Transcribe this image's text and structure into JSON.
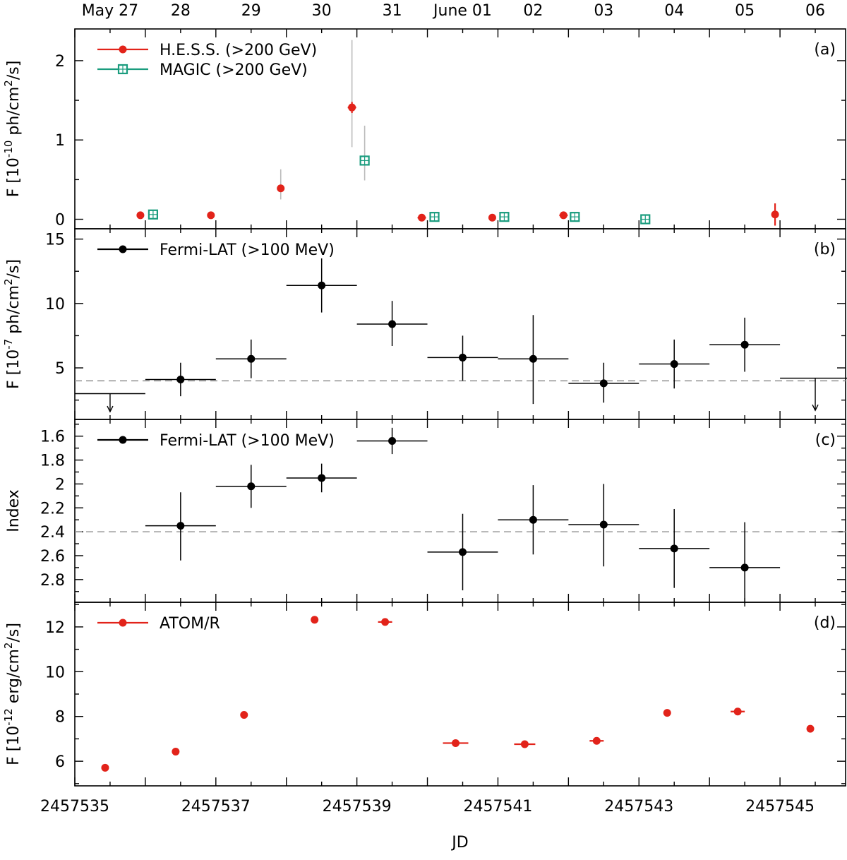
{
  "chart_data": {
    "type": "multi-panel scatter (light curves)",
    "xlabel": "JD",
    "xlim": [
      2457535.0,
      2457545.93
    ],
    "x_ticks": [
      2457535,
      2457537,
      2457539,
      2457541,
      2457543,
      2457545
    ],
    "x_ticks_labels": [
      "2457535",
      "2457537",
      "2457539",
      "2457541",
      "2457543",
      "2457545"
    ],
    "top_axis": {
      "ticks": [
        2457535.5,
        2457536.5,
        2457537.5,
        2457538.5,
        2457539.5,
        2457540.5,
        2457541.5,
        2457542.5,
        2457543.5,
        2457544.5,
        2457545.5
      ],
      "labels": [
        "May 27",
        "28",
        "29",
        "30",
        "31",
        "June 01",
        "02",
        "03",
        "04",
        "05",
        "06"
      ]
    },
    "colors": {
      "hess": "#e2231a",
      "magic": "#1a9c7e",
      "fermi": "#000000",
      "atom": "#e2231a",
      "reference_line": "#999999",
      "sys_error": "#bbbbbb"
    },
    "panels": [
      {
        "id": "a",
        "tag": "(a)",
        "ylabel": "F [10",
        "ylabel_exp": "-10",
        "ylabel_rest": " ph/cm",
        "ylabel_exp2": "2",
        "ylabel_end": "/s]",
        "ylim": [
          -0.12,
          2.4
        ],
        "yticks": [
          0,
          1,
          2
        ],
        "yticks_labels": [
          "0",
          "1",
          "2"
        ],
        "series": [
          {
            "name": "H.E.S.S. (>200 GeV)",
            "marker": "circle",
            "color": "#e2231a",
            "points": [
              {
                "x": 2457535.93,
                "y": 0.05,
                "xerr": 0.02,
                "yerr": 0.04
              },
              {
                "x": 2457536.93,
                "y": 0.05,
                "xerr": 0.02,
                "yerr": 0.02
              },
              {
                "x": 2457537.92,
                "y": 0.39,
                "xerr": 0.02,
                "yerr": 0.04,
                "syserr": [
                  0.25,
                  0.63
                ]
              },
              {
                "x": 2457538.93,
                "y": 1.41,
                "xerr": 0.06,
                "yerr": 0.07,
                "syserr": [
                  0.91,
                  2.26
                ]
              },
              {
                "x": 2457539.92,
                "y": 0.02,
                "xerr": 0.06,
                "yerr": 0.02
              },
              {
                "x": 2457540.92,
                "y": 0.02,
                "xerr": 0.04,
                "yerr": 0.02
              },
              {
                "x": 2457541.93,
                "y": 0.05,
                "xerr": 0.06,
                "yerr": 0.02
              },
              {
                "x": 2457544.93,
                "y": 0.06,
                "xerr": 0.02,
                "yerr": 0.14
              }
            ]
          },
          {
            "name": "MAGIC (>200 GeV)",
            "marker": "square-open",
            "color": "#1a9c7e",
            "points": [
              {
                "x": 2457536.11,
                "y": 0.06
              },
              {
                "x": 2457539.11,
                "y": 0.74,
                "syserr": [
                  0.49,
                  1.18
                ]
              },
              {
                "x": 2457540.1,
                "y": 0.03
              },
              {
                "x": 2457541.09,
                "y": 0.03
              },
              {
                "x": 2457542.09,
                "y": 0.03
              },
              {
                "x": 2457543.09,
                "y": 0.0
              }
            ]
          }
        ]
      },
      {
        "id": "b",
        "tag": "(b)",
        "ylabel": "F [10",
        "ylabel_exp": "-7",
        "ylabel_rest": " ph/cm",
        "ylabel_exp2": "2",
        "ylabel_end": "/s]",
        "ylim": [
          1.0,
          15.8
        ],
        "yticks": [
          5,
          10,
          15
        ],
        "yticks_labels": [
          "5",
          "10",
          "15"
        ],
        "reference_line": 4.0,
        "series": [
          {
            "name": "Fermi-LAT (>100 MeV)",
            "marker": "circle",
            "color": "#000000",
            "points": [
              {
                "x": 2457536.5,
                "y": 4.1,
                "xerr": 0.5,
                "yerr_lo": 1.3,
                "yerr_hi": 1.3
              },
              {
                "x": 2457537.5,
                "y": 5.7,
                "xerr": 0.5,
                "yerr_lo": 1.5,
                "yerr_hi": 1.5
              },
              {
                "x": 2457538.5,
                "y": 11.4,
                "xerr": 0.5,
                "yerr_lo": 2.1,
                "yerr_hi": 2.1
              },
              {
                "x": 2457539.5,
                "y": 8.4,
                "xerr": 0.5,
                "yerr_lo": 1.7,
                "yerr_hi": 1.8
              },
              {
                "x": 2457540.5,
                "y": 5.8,
                "xerr": 0.5,
                "yerr_lo": 1.8,
                "yerr_hi": 1.7
              },
              {
                "x": 2457541.5,
                "y": 5.7,
                "xerr": 0.5,
                "yerr_lo": 3.5,
                "yerr_hi": 3.4
              },
              {
                "x": 2457542.5,
                "y": 3.8,
                "xerr": 0.5,
                "yerr_lo": 1.5,
                "yerr_hi": 1.6
              },
              {
                "x": 2457543.5,
                "y": 5.3,
                "xerr": 0.5,
                "yerr_lo": 1.9,
                "yerr_hi": 1.9
              },
              {
                "x": 2457544.5,
                "y": 6.8,
                "xerr": 0.5,
                "yerr_lo": 2.1,
                "yerr_hi": 2.1
              }
            ],
            "upper_limits": [
              {
                "x": 2457535.5,
                "y": 3.0,
                "xerr": 0.5,
                "arrow_to": 1.6
              },
              {
                "x": 2457545.5,
                "y": 4.2,
                "xerr": 0.5,
                "arrow_to": 1.7
              }
            ]
          }
        ]
      },
      {
        "id": "c",
        "tag": "(c)",
        "ylabel": "Index",
        "ylim": [
          2.99,
          1.46
        ],
        "yticks": [
          1.6,
          1.8,
          2.0,
          2.2,
          2.4,
          2.6,
          2.8
        ],
        "yticks_labels": [
          "1.6",
          "1.8",
          "2",
          "2.2",
          "2.4",
          "2.6",
          "2.8"
        ],
        "reference_line": 2.4,
        "series": [
          {
            "name": "Fermi-LAT (>100 MeV)",
            "marker": "circle",
            "color": "#000000",
            "points": [
              {
                "x": 2457536.5,
                "y": 2.35,
                "xerr": 0.5,
                "yerr_lo": 0.28,
                "yerr_hi": 0.29
              },
              {
                "x": 2457537.5,
                "y": 2.02,
                "xerr": 0.5,
                "yerr_lo": 0.18,
                "yerr_hi": 0.18
              },
              {
                "x": 2457538.5,
                "y": 1.95,
                "xerr": 0.5,
                "yerr_lo": 0.12,
                "yerr_hi": 0.12
              },
              {
                "x": 2457539.5,
                "y": 1.64,
                "xerr": 0.5,
                "yerr_lo": 0.11,
                "yerr_hi": 0.11
              },
              {
                "x": 2457540.5,
                "y": 2.57,
                "xerr": 0.5,
                "yerr_lo": 0.32,
                "yerr_hi": 0.32
              },
              {
                "x": 2457541.5,
                "y": 2.3,
                "xerr": 0.5,
                "yerr_lo": 0.29,
                "yerr_hi": 0.29
              },
              {
                "x": 2457542.5,
                "y": 2.34,
                "xerr": 0.5,
                "yerr_lo": 0.34,
                "yerr_hi": 0.35
              },
              {
                "x": 2457543.5,
                "y": 2.54,
                "xerr": 0.5,
                "yerr_lo": 0.33,
                "yerr_hi": 0.33
              },
              {
                "x": 2457544.5,
                "y": 2.7,
                "xerr": 0.5,
                "yerr_lo": 0.38,
                "yerr_hi": 0.3
              }
            ]
          }
        ]
      },
      {
        "id": "d",
        "tag": "(d)",
        "ylabel": "F [10",
        "ylabel_exp": "-12",
        "ylabel_rest": " erg/cm",
        "ylabel_exp2": "2",
        "ylabel_end": "/s]",
        "ylim": [
          4.9,
          13.1
        ],
        "yticks": [
          6,
          8,
          10,
          12
        ],
        "yticks_labels": [
          "6",
          "8",
          "10",
          "12"
        ],
        "series": [
          {
            "name": "ATOM/R",
            "marker": "circle",
            "color": "#e2231a",
            "points": [
              {
                "x": 2457535.43,
                "y": 5.71,
                "xerr": 0.0
              },
              {
                "x": 2457536.43,
                "y": 6.43,
                "xerr": 0.0
              },
              {
                "x": 2457537.4,
                "y": 8.07,
                "xerr": 0.0
              },
              {
                "x": 2457538.4,
                "y": 12.32,
                "xerr": 0.0
              },
              {
                "x": 2457539.4,
                "y": 12.22,
                "xerr": 0.1
              },
              {
                "x": 2457540.4,
                "y": 6.81,
                "xerr": 0.18
              },
              {
                "x": 2457541.38,
                "y": 6.76,
                "xerr": 0.15
              },
              {
                "x": 2457542.4,
                "y": 6.91,
                "xerr": 0.1
              },
              {
                "x": 2457543.4,
                "y": 8.16,
                "xerr": 0.0
              },
              {
                "x": 2457544.4,
                "y": 8.22,
                "xerr": 0.1
              },
              {
                "x": 2457545.43,
                "y": 7.45,
                "xerr": 0.0
              }
            ]
          }
        ]
      }
    ]
  }
}
